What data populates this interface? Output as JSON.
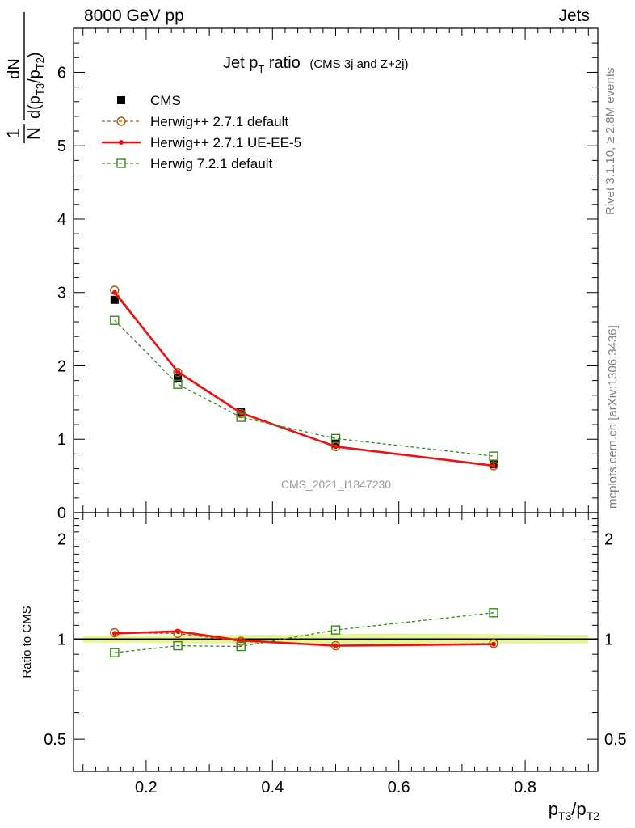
{
  "header": {
    "left": "8000 GeV pp",
    "right": "Jets"
  },
  "side_text": {
    "rivet": "Rivet 3.1.10, ≥ 2.8M events",
    "mcplots": "mcplots.cern.ch [arXiv:1306.3436]"
  },
  "chart_data": [
    {
      "type": "line",
      "title_main": "Jet p",
      "title_sub": "T",
      "title_rest": " ratio",
      "title_note": "(CMS 3j and Z+2j)",
      "watermark": "CMS_2021_I1847230",
      "ylabel_num": "1",
      "ylabel_den": "N",
      "ylabel_frac_num": "dN",
      "ylabel_frac_den": "d(p",
      "ylabel_frac_den_sub1": "T3",
      "ylabel_frac_den_mid": "/p",
      "ylabel_frac_den_sub2": "T2",
      "ylabel_frac_den_end": ")",
      "xlim": [
        0.085,
        0.915
      ],
      "ylim": [
        0,
        6.6
      ],
      "yticks": [
        0,
        1,
        2,
        3,
        4,
        5,
        6
      ],
      "ytick_labels": [
        "0",
        "1",
        "2",
        "3",
        "4",
        "5",
        "6"
      ],
      "x": [
        0.15,
        0.25,
        0.35,
        0.5,
        0.75
      ],
      "series": [
        {
          "name": "CMS",
          "values": [
            2.9,
            1.83,
            1.37,
            0.94,
            0.66
          ],
          "color": "#000000",
          "marker": "square-filled",
          "style": "points"
        },
        {
          "name": "Herwig++ 2.7.1 default",
          "values": [
            3.03,
            1.91,
            1.35,
            0.9,
            0.64
          ],
          "color": "#b05a00",
          "marker": "circle-open",
          "style": "dashed"
        },
        {
          "name": "Herwig++ 2.7.1 UE-EE-5",
          "values": [
            3.0,
            1.92,
            1.36,
            0.9,
            0.64
          ],
          "color": "#ee1111",
          "marker": "none",
          "style": "solid"
        },
        {
          "name": "Herwig 7.2.1 default",
          "values": [
            2.62,
            1.75,
            1.3,
            1.01,
            0.77
          ],
          "color": "#3a8a1a",
          "marker": "square-open",
          "style": "dashed"
        }
      ]
    },
    {
      "type": "line",
      "ylabel": "Ratio to CMS",
      "xlabel_main": "p",
      "xlabel_sub1": "T3",
      "xlabel_mid": "/p",
      "xlabel_sub2": "T2",
      "xlim": [
        0.085,
        0.915
      ],
      "ylim": [
        0.4,
        2.4
      ],
      "log_y": true,
      "yticks": [
        0.5,
        1,
        2
      ],
      "ytick_labels": [
        "0.5",
        "1",
        "2"
      ],
      "xticks": [
        0.2,
        0.4,
        0.6,
        0.8
      ],
      "xtick_labels": [
        "0.2",
        "0.4",
        "0.6",
        "0.8"
      ],
      "x": [
        0.15,
        0.25,
        0.35,
        0.5,
        0.75
      ],
      "band": {
        "x": [
          0.1,
          0.2,
          0.3,
          0.4,
          0.6,
          0.9
        ],
        "low": [
          0.975,
          0.975,
          0.97,
          0.97,
          0.965,
          0.97
        ],
        "high": [
          1.025,
          1.025,
          1.03,
          1.03,
          1.04,
          1.03
        ],
        "color": "#e6f59a"
      },
      "series": [
        {
          "name": "Herwig++ 2.7.1 default",
          "values": [
            1.045,
            1.04,
            0.985,
            0.955,
            0.97
          ],
          "color": "#b05a00",
          "marker": "circle-open",
          "style": "dashed"
        },
        {
          "name": "Herwig++ 2.7.1 UE-EE-5",
          "values": [
            1.04,
            1.055,
            0.99,
            0.955,
            0.965
          ],
          "color": "#ee1111",
          "marker": "none",
          "style": "solid"
        },
        {
          "name": "Herwig 7.2.1 default",
          "values": [
            0.91,
            0.955,
            0.95,
            1.065,
            1.2
          ],
          "color": "#3a8a1a",
          "marker": "square-open",
          "style": "dashed"
        }
      ]
    }
  ]
}
